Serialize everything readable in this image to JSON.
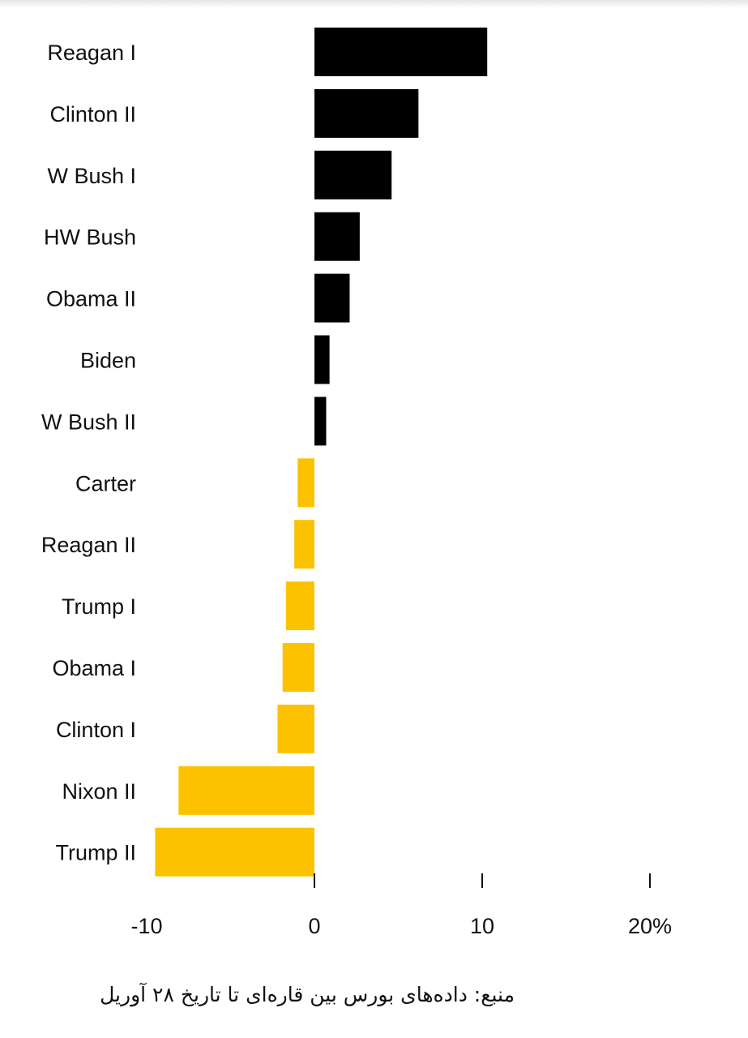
{
  "chart_data": {
    "type": "bar",
    "orientation": "horizontal",
    "categories": [
      "Reagan I",
      "Clinton II",
      "W Bush I",
      "HW Bush",
      "Obama II",
      "Biden",
      "W Bush II",
      "Carter",
      "Reagan II",
      "Trump I",
      "Obama I",
      "Clinton I",
      "Nixon II",
      "Trump II"
    ],
    "values": [
      10.3,
      6.2,
      4.6,
      2.7,
      2.1,
      0.9,
      0.7,
      -1.0,
      -1.2,
      -1.7,
      -1.9,
      -2.2,
      -8.1,
      -9.5
    ],
    "xlim": [
      -10,
      20
    ],
    "xticks": [
      -10,
      0,
      10,
      20
    ],
    "xtick_labels": [
      "-10",
      "0",
      "10",
      "20%"
    ],
    "colors": {
      "positive": "#000000",
      "negative": "#fcc200"
    },
    "grid": false,
    "title": "",
    "xlabel": "",
    "ylabel": ""
  },
  "footer": {
    "source": "منبع: داده‌های بورس بین قاره‌ای تا تاریخ ۲۸ آوریل"
  }
}
